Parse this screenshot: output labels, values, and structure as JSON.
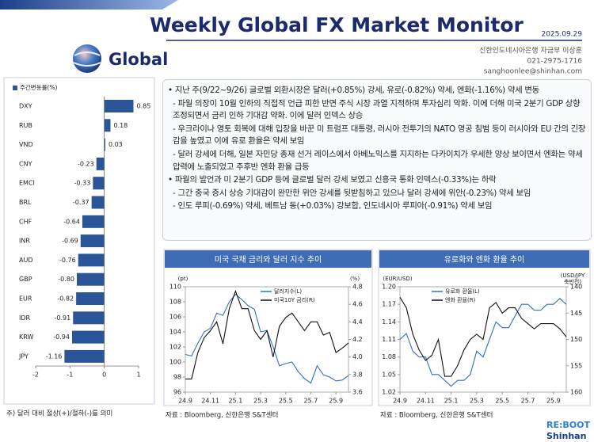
{
  "header": {
    "title": "Weekly Global FX Market Monitor",
    "date": "2025.09.29",
    "section": "Global",
    "contact": [
      "신한인도네시아은행 자금부 이상훈",
      "021-2975-1716",
      "sanghoonlee@shinhan.com"
    ]
  },
  "commentary": [
    "• 지난 주(9/22~9/26) 글로벌 외환시장은 달러(+0.85%) 강세, 유로(-0.82%) 약세, 엔화(-1.16%) 약세 변동",
    "- 파월 의장이 10월 인하의 직접적 언급 피한 반면 주식 시장 과열 지적하며 투자심리 악화. 이에 더해 미국 2분기 GDP 상향 조정되면서 금리 인하 기대감 약화. 이에 달러 인덱스 상승",
    "- 우크라이나 영토 회복에 대해 입장을 바꾼 미 트럼프 대통령, 러시아 전투기의 NATO 영공 침범 등이 러시아와 EU 간의 긴장감을 높였고 이에 유로 환율은 약세 보임",
    "- 달러 강세에 더해, 일본 자민당 총재 선거 레이스에서 아베노믹스를 지지하는 다카이치가 우세한 양상 보이면서 엔화는 약세 압력에 노출되었고 주후반 엔화 환율 급등",
    "• 파월의 발언과 미 2분기 GDP 등에 글로벌 달러 강세 보였고 신흥국 통화 인덱스(-0.33%)는 하락",
    "- 그간 중국 증시 상승 기대감이 완만한 위안 강세를 뒷받침하고 있으나 달러 강세에 위안(-0.23%) 약세 보임",
    "- 인도 루피(-0.69%) 약세, 베트남 동(+0.03%) 강보합, 인도네시아 루피아(-0.91%) 약세 보임"
  ],
  "chart_data": [
    {
      "type": "bar",
      "legend": "주간변동률(%)",
      "categories": [
        "DXY",
        "RUB",
        "VND",
        "CNY",
        "EMCI",
        "BRL",
        "CHF",
        "INR",
        "AUD",
        "GBP",
        "EUR",
        "IDR",
        "KRW",
        "JPY"
      ],
      "values": [
        0.85,
        0.18,
        0.03,
        -0.23,
        -0.33,
        -0.37,
        -0.64,
        -0.69,
        -0.76,
        -0.8,
        -0.82,
        -0.91,
        -0.94,
        -1.16
      ],
      "value_labels": [
        "0.85",
        "0.18",
        "0.03",
        "-0.23",
        "-0.33",
        "-0.37",
        "-0.64",
        "-0.69",
        "-0.76",
        "-0.80",
        "-0.82",
        "-0.91",
        "-0.94",
        "-1.16"
      ],
      "color": "#2a5599",
      "xlim": [
        -2,
        1
      ],
      "xticks": [
        -2,
        -1,
        0,
        1
      ],
      "note": "주) 달러 대비 절상(+)/절하(-)를 의미"
    },
    {
      "type": "line",
      "title": "미국 국채 금리와 달러 지수 추이",
      "y_unit": [
        "(pt)"
      ],
      "y2_unit": [
        "(%)"
      ],
      "categories": [
        "24.9",
        null,
        null,
        null,
        "24.11",
        null,
        null,
        null,
        "25.1",
        null,
        null,
        null,
        "25.3",
        null,
        null,
        null,
        "25.5",
        null,
        null,
        null,
        "25.7",
        null,
        null,
        null,
        "25.9",
        null,
        null
      ],
      "series": [
        {
          "name": "달러지수(L)",
          "color": "#2f6fd0",
          "values": [
            101.0,
            100.8,
            102.5,
            104.0,
            104.5,
            106.5,
            106.2,
            108.0,
            109.0,
            108.3,
            107.5,
            107.0,
            104.0,
            104.2,
            102.0,
            99.5,
            99.8,
            100.0,
            98.7,
            97.8,
            97.2,
            99.5,
            98.3,
            98.0,
            97.5,
            97.6,
            98.2
          ]
        },
        {
          "name": "미국10Y 금리(R)",
          "color": "#111111",
          "axis": "y2",
          "values": [
            3.75,
            3.75,
            4.05,
            4.22,
            4.3,
            4.4,
            4.15,
            4.55,
            4.75,
            4.55,
            4.55,
            4.3,
            4.2,
            4.3,
            4.0,
            4.35,
            4.45,
            4.5,
            4.4,
            4.3,
            4.4,
            4.4,
            4.25,
            4.28,
            4.05,
            4.1,
            4.16
          ]
        }
      ],
      "ylim": [
        96,
        110
      ],
      "yticks": [
        96,
        98,
        100,
        102,
        104,
        106,
        108,
        110
      ],
      "y2lim": [
        3.6,
        4.8
      ],
      "y2ticks": [
        3.6,
        3.8,
        {
          "value": 4,
          "label": "4.0"
        },
        4.2,
        4.4,
        4.6,
        4.8
      ],
      "source": "자료 : Bloomberg, 신한은행 S&T센터"
    },
    {
      "type": "line",
      "title": "유로화와 엔화 환율 추이",
      "y_unit": [
        "(EUR/USD)"
      ],
      "y2_unit": [
        "(USD/JPY",
        "축반전)"
      ],
      "categories": [
        "24.9",
        null,
        null,
        null,
        "24.11",
        null,
        null,
        null,
        "25.1",
        null,
        null,
        null,
        "25.3",
        null,
        null,
        null,
        "25.5",
        null,
        null,
        null,
        "25.7",
        null,
        null,
        null,
        "25.9",
        null,
        null
      ],
      "series": [
        {
          "name": "유로화 환율(L)",
          "color": "#2f6fd0",
          "values": [
            1.11,
            1.12,
            1.09,
            1.08,
            1.08,
            1.05,
            1.05,
            1.04,
            1.03,
            1.04,
            1.04,
            1.05,
            1.09,
            1.08,
            1.11,
            1.14,
            1.13,
            1.13,
            1.15,
            1.17,
            1.17,
            1.16,
            1.16,
            1.17,
            1.17,
            1.18,
            1.17
          ]
        },
        {
          "name": "엔화 환율(R)",
          "color": "#111111",
          "axis": "y2",
          "values": [
            142,
            144,
            149,
            152,
            154,
            153,
            150,
            157,
            157,
            155,
            152,
            150,
            149,
            150,
            144,
            143,
            145,
            144,
            144,
            146,
            147,
            148,
            147,
            147,
            147,
            148,
            149.5
          ]
        }
      ],
      "ylim": [
        1.02,
        1.2
      ],
      "yticks": [
        1.02,
        1.05,
        1.08,
        1.11,
        1.14,
        1.17,
        {
          "value": 1.2,
          "label": "1.20"
        }
      ],
      "y2lim": [
        160,
        140
      ],
      "y2ticks": [
        140,
        145,
        150,
        155,
        160
      ],
      "source": "자료 : Bloomberg, 신한은행 S&T센터"
    }
  ],
  "footer": {
    "logo": [
      "RE:BOOT",
      "Shinhan"
    ]
  }
}
